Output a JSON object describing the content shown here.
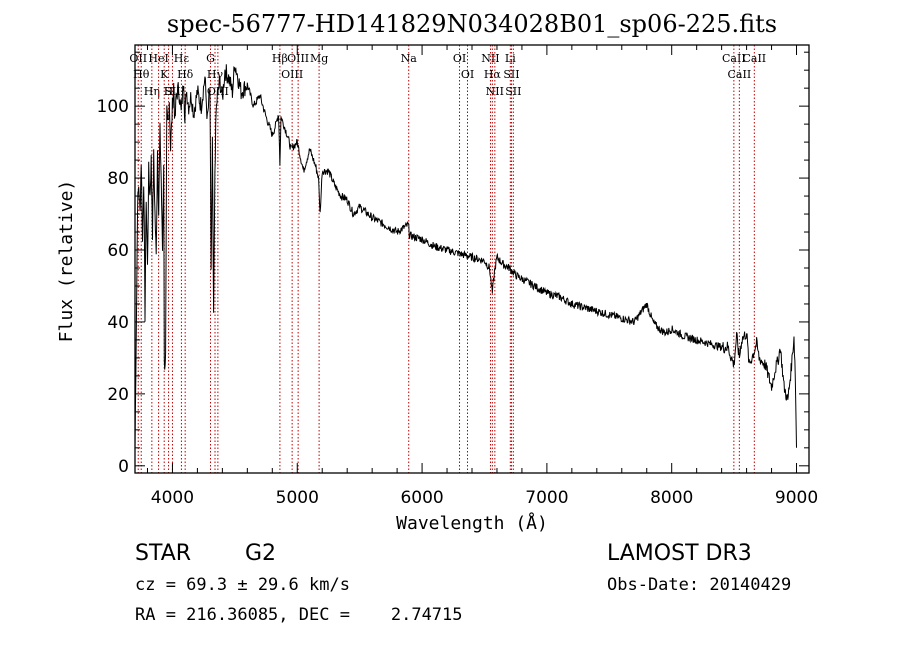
{
  "chart_data": {
    "type": "line",
    "title": "spec-56777-HD141829N034028B01_sp06-225.fits",
    "xlabel": "Wavelength (Å)",
    "ylabel": "Flux (relative)",
    "xlim": [
      3700,
      9100
    ],
    "ylim": [
      -2,
      117
    ],
    "x_ticks": [
      4000,
      5000,
      6000,
      7000,
      8000,
      9000
    ],
    "y_ticks": [
      0,
      20,
      40,
      60,
      80,
      100
    ],
    "grid": false,
    "line_color": "#000000",
    "marker_color": "#c00000",
    "series": [
      {
        "x": [
          3700,
          3710,
          3720,
          3730,
          3740,
          3750,
          3760,
          3770,
          3780,
          3790,
          3800,
          3810,
          3820,
          3830,
          3840,
          3850,
          3860,
          3870,
          3880,
          3890,
          3900,
          3910,
          3920,
          3930,
          3935,
          3945,
          3955,
          3962,
          3968,
          3975,
          3985,
          4000,
          4010,
          4020,
          4030,
          4050,
          4070,
          4090,
          4100,
          4110,
          4130,
          4150,
          4170,
          4200,
          4230,
          4260,
          4280,
          4300,
          4310,
          4320,
          4330,
          4340,
          4350,
          4360,
          4380,
          4400,
          4420,
          4450,
          4480,
          4500,
          4550,
          4600,
          4650,
          4700,
          4750,
          4800,
          4830,
          4850,
          4861,
          4870,
          4890,
          4920,
          4950,
          5000,
          5050,
          5100,
          5150,
          5170,
          5183,
          5200,
          5250,
          5300,
          5350,
          5400,
          5450,
          5500,
          5600,
          5700,
          5800,
          5890,
          5900,
          6000,
          6100,
          6200,
          6300,
          6400,
          6500,
          6540,
          6563,
          6580,
          6600,
          6650,
          6700,
          6750,
          6800,
          6900,
          7000,
          7100,
          7200,
          7300,
          7400,
          7500,
          7600,
          7700,
          7800,
          7850,
          7900,
          7950,
          8000,
          8100,
          8200,
          8300,
          8400,
          8450,
          8498,
          8520,
          8542,
          8560,
          8600,
          8620,
          8662,
          8680,
          8700,
          8750,
          8800,
          8830,
          8850,
          8870,
          8900,
          8930,
          8960,
          8980,
          8990,
          9000
        ],
        "y": [
          5,
          36,
          72,
          78,
          70,
          85,
          62,
          80,
          42,
          75,
          55,
          82,
          75,
          85,
          65,
          86,
          70,
          58,
          88,
          70,
          93,
          80,
          60,
          85,
          28,
          30,
          98,
          95,
          96,
          102,
          88,
          100,
          106,
          95,
          103,
          105,
          98,
          108,
          95,
          105,
          100,
          103,
          98,
          104,
          100,
          108,
          96,
          105,
          55,
          90,
          40,
          82,
          98,
          103,
          107,
          102,
          110,
          108,
          104,
          112,
          104,
          106,
          100,
          103,
          97,
          92,
          95,
          98,
          84,
          97,
          95,
          92,
          88,
          90,
          82,
          88,
          83,
          80,
          70,
          82,
          82,
          78,
          75,
          74,
          70,
          72,
          69,
          67,
          65,
          67,
          64,
          63,
          61,
          60,
          59,
          58,
          57,
          55,
          48,
          54,
          58,
          56,
          55,
          53,
          52,
          50,
          48,
          47,
          45,
          44,
          43,
          42,
          41,
          40,
          45,
          40,
          38,
          37,
          38,
          36,
          35,
          34,
          33,
          33,
          28,
          36,
          30,
          35,
          37,
          28,
          32,
          34,
          30,
          28,
          22,
          27,
          29,
          33,
          22,
          18,
          28,
          36,
          25,
          5
        ]
      }
    ],
    "line_markers": [
      {
        "x": 3726,
        "label": "OII"
      },
      {
        "x": 3750,
        "label": "Hθ"
      },
      {
        "x": 3835,
        "label": "Hη"
      },
      {
        "x": 3889,
        "label": "HeI"
      },
      {
        "x": 3934,
        "label": "K"
      },
      {
        "x": 3969,
        "label": "H"
      },
      {
        "x": 4000,
        "label": "SII"
      },
      {
        "x": 4072,
        "label": "Hε"
      },
      {
        "x": 4102,
        "label": "Hδ"
      },
      {
        "x": 4305,
        "label": "G"
      },
      {
        "x": 4341,
        "label": "Hγ"
      },
      {
        "x": 4364,
        "label": "OIII"
      },
      {
        "x": 4861,
        "label": "Hβ"
      },
      {
        "x": 4959,
        "label": "OIII"
      },
      {
        "x": 5007,
        "label": "OIII"
      },
      {
        "x": 5175,
        "label": "Mg"
      },
      {
        "x": 5893,
        "label": "Na"
      },
      {
        "x": 6300,
        "label": "OI"
      },
      {
        "x": 6364,
        "label": "OI"
      },
      {
        "x": 6548,
        "label": "NII"
      },
      {
        "x": 6563,
        "label": "Hα"
      },
      {
        "x": 6583,
        "label": "NII"
      },
      {
        "x": 6707,
        "label": "Li"
      },
      {
        "x": 6716,
        "label": "SII"
      },
      {
        "x": 6731,
        "label": "SII"
      },
      {
        "x": 8498,
        "label": "CaII"
      },
      {
        "x": 8542,
        "label": "CaII"
      },
      {
        "x": 8662,
        "label": "CaII"
      }
    ]
  },
  "info": {
    "class_label": "STAR",
    "subclass": "G2",
    "survey": "LAMOST DR3",
    "redshift_line": "cz = 69.3 ± 29.6 km/s",
    "obs_date": "Obs-Date: 20140429",
    "coords": "RA = 216.36085, DEC =    2.74715"
  }
}
